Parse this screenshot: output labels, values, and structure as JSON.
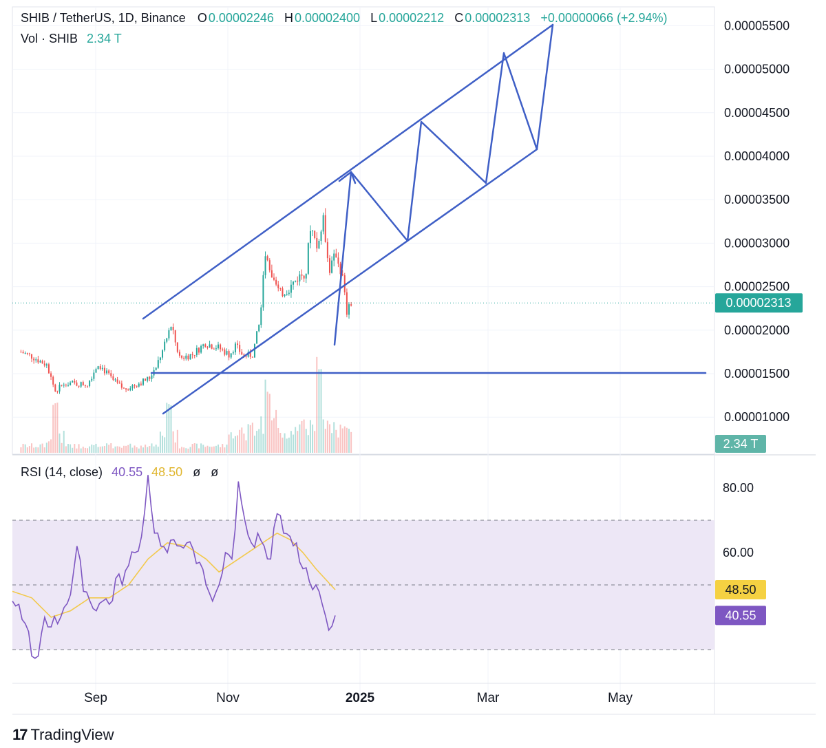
{
  "header": {
    "symbol": "SHIB / TetherUS, 1D, Binance",
    "o_label": "O",
    "o_value": "0.00002246",
    "h_label": "H",
    "h_value": "0.00002400",
    "l_label": "L",
    "l_value": "0.00002212",
    "c_label": "C",
    "c_value": "0.00002313",
    "change": "+0.00000066 (+2.94%)",
    "vol_label": "Vol · SHIB",
    "vol_value": "2.34 T"
  },
  "rsi_header": {
    "label": "RSI (14, close)",
    "rsi_value": "40.55",
    "ma_value": "48.50",
    "extra1": "ø",
    "extra2": "ø"
  },
  "price_badge": "0.00002313",
  "vol_badge": "2.34 T",
  "rsi_badge": "40.55",
  "rsi_ma_badge": "48.50",
  "brand": "TradingView",
  "colors": {
    "up": "#26a69a",
    "down": "#ef5350",
    "drawing": "#3f5fc6",
    "rsi": "#7e57c2",
    "rsi_ma": "#f2c94c",
    "badge_price": "#26a69a",
    "badge_rsi": "#7e57c2",
    "badge_ma": "#f5d142",
    "band_fill": "#ede7f6"
  },
  "chart_data": {
    "type": "candlestick",
    "symbol": "SHIB/USDT",
    "interval": "1D",
    "price_axis": {
      "ticks": [
        "0.00001000",
        "0.00001500",
        "0.00002000",
        "0.00002500",
        "0.00003000",
        "0.00003500",
        "0.00004000",
        "0.00004500",
        "0.00005000",
        "0.00005500"
      ],
      "range": [
        5.6e-06,
        5.6e-05
      ]
    },
    "time_axis": {
      "ticks": [
        "Sep",
        "Nov",
        "2025",
        "Mar",
        "May"
      ]
    },
    "last_close": 2.313e-05,
    "price_path": [
      [
        "2024-07-20",
        1.75e-05
      ],
      [
        "2024-07-25",
        1.7e-05
      ],
      [
        "2024-08-01",
        1.6e-05
      ],
      [
        "2024-08-05",
        1.3e-05
      ],
      [
        "2024-08-10",
        1.4e-05
      ],
      [
        "2024-08-15",
        1.38e-05
      ],
      [
        "2024-08-20",
        1.38e-05
      ],
      [
        "2024-08-25",
        1.62e-05
      ],
      [
        "2024-09-01",
        1.42e-05
      ],
      [
        "2024-09-06",
        1.32e-05
      ],
      [
        "2024-09-12",
        1.38e-05
      ],
      [
        "2024-09-18",
        1.45e-05
      ],
      [
        "2024-09-24",
        1.75e-05
      ],
      [
        "2024-09-28",
        2.05e-05
      ],
      [
        "2024-10-02",
        1.68e-05
      ],
      [
        "2024-10-08",
        1.72e-05
      ],
      [
        "2024-10-14",
        1.85e-05
      ],
      [
        "2024-10-20",
        1.8e-05
      ],
      [
        "2024-10-25",
        1.72e-05
      ],
      [
        "2024-10-28",
        1.82e-05
      ],
      [
        "2024-11-01",
        1.7e-05
      ],
      [
        "2024-11-05",
        1.72e-05
      ],
      [
        "2024-11-08",
        2.05e-05
      ],
      [
        "2024-11-11",
        2.85e-05
      ],
      [
        "2024-11-14",
        2.55e-05
      ],
      [
        "2024-11-18",
        2.42e-05
      ],
      [
        "2024-11-22",
        2.48e-05
      ],
      [
        "2024-11-26",
        2.6e-05
      ],
      [
        "2024-11-30",
        2.68e-05
      ],
      [
        "2024-12-02",
        3.2e-05
      ],
      [
        "2024-12-05",
        2.95e-05
      ],
      [
        "2024-12-08",
        3.25e-05
      ],
      [
        "2024-12-11",
        2.7e-05
      ],
      [
        "2024-12-14",
        2.88e-05
      ],
      [
        "2024-12-17",
        2.6e-05
      ],
      [
        "2024-12-19",
        2.2e-05
      ],
      [
        "2024-12-20",
        2.25e-05
      ],
      [
        "2024-12-21",
        2.31e-05
      ]
    ],
    "volume_spikes": [
      "2024-08-05",
      "2024-09-27",
      "2024-11-12",
      "2024-12-06"
    ],
    "rsi": {
      "length": 14,
      "source": "close",
      "axis_ticks": [
        "60.00",
        "80.00"
      ],
      "bands": {
        "upper": 70,
        "middle": 50,
        "lower": 30
      },
      "range": [
        26,
        86
      ],
      "last": 40.55,
      "ma_last": 48.5,
      "rsi_path": [
        [
          0,
          45
        ],
        [
          2,
          44
        ],
        [
          4,
          38
        ],
        [
          6,
          28
        ],
        [
          8,
          28
        ],
        [
          10,
          40
        ],
        [
          12,
          37
        ],
        [
          14,
          38
        ],
        [
          16,
          43
        ],
        [
          18,
          47
        ],
        [
          20,
          62
        ],
        [
          22,
          48
        ],
        [
          24,
          45
        ],
        [
          26,
          42
        ],
        [
          28,
          45
        ],
        [
          30,
          44
        ],
        [
          32,
          52
        ],
        [
          34,
          50
        ],
        [
          36,
          56
        ],
        [
          38,
          60
        ],
        [
          40,
          65
        ],
        [
          42,
          84
        ],
        [
          44,
          66
        ],
        [
          46,
          62
        ],
        [
          48,
          60
        ],
        [
          50,
          64
        ],
        [
          52,
          62
        ],
        [
          54,
          63
        ],
        [
          56,
          61
        ],
        [
          58,
          57
        ],
        [
          60,
          50
        ],
        [
          62,
          45
        ],
        [
          64,
          50
        ],
        [
          66,
          60
        ],
        [
          68,
          58
        ],
        [
          70,
          82
        ],
        [
          72,
          70
        ],
        [
          74,
          63
        ],
        [
          76,
          66
        ],
        [
          78,
          62
        ],
        [
          80,
          58
        ],
        [
          82,
          72
        ],
        [
          84,
          66
        ],
        [
          86,
          65
        ],
        [
          88,
          63
        ],
        [
          90,
          55
        ],
        [
          92,
          51
        ],
        [
          94,
          50
        ],
        [
          96,
          44
        ],
        [
          98,
          36
        ],
        [
          100,
          40.55
        ]
      ],
      "ma_path": [
        [
          0,
          48
        ],
        [
          6,
          46
        ],
        [
          12,
          40
        ],
        [
          18,
          42
        ],
        [
          24,
          46
        ],
        [
          30,
          46
        ],
        [
          36,
          50
        ],
        [
          42,
          58
        ],
        [
          48,
          63
        ],
        [
          54,
          62
        ],
        [
          60,
          58
        ],
        [
          64,
          54
        ],
        [
          70,
          58
        ],
        [
          76,
          62
        ],
        [
          82,
          66
        ],
        [
          86,
          64
        ],
        [
          90,
          60
        ],
        [
          94,
          55
        ],
        [
          100,
          48.5
        ]
      ]
    },
    "annotations": [
      "rising channel upper trendline",
      "rising channel lower trendline",
      "horizontal support line at 0.0000150",
      "projected zig-zag path to ~0.0000550"
    ]
  }
}
